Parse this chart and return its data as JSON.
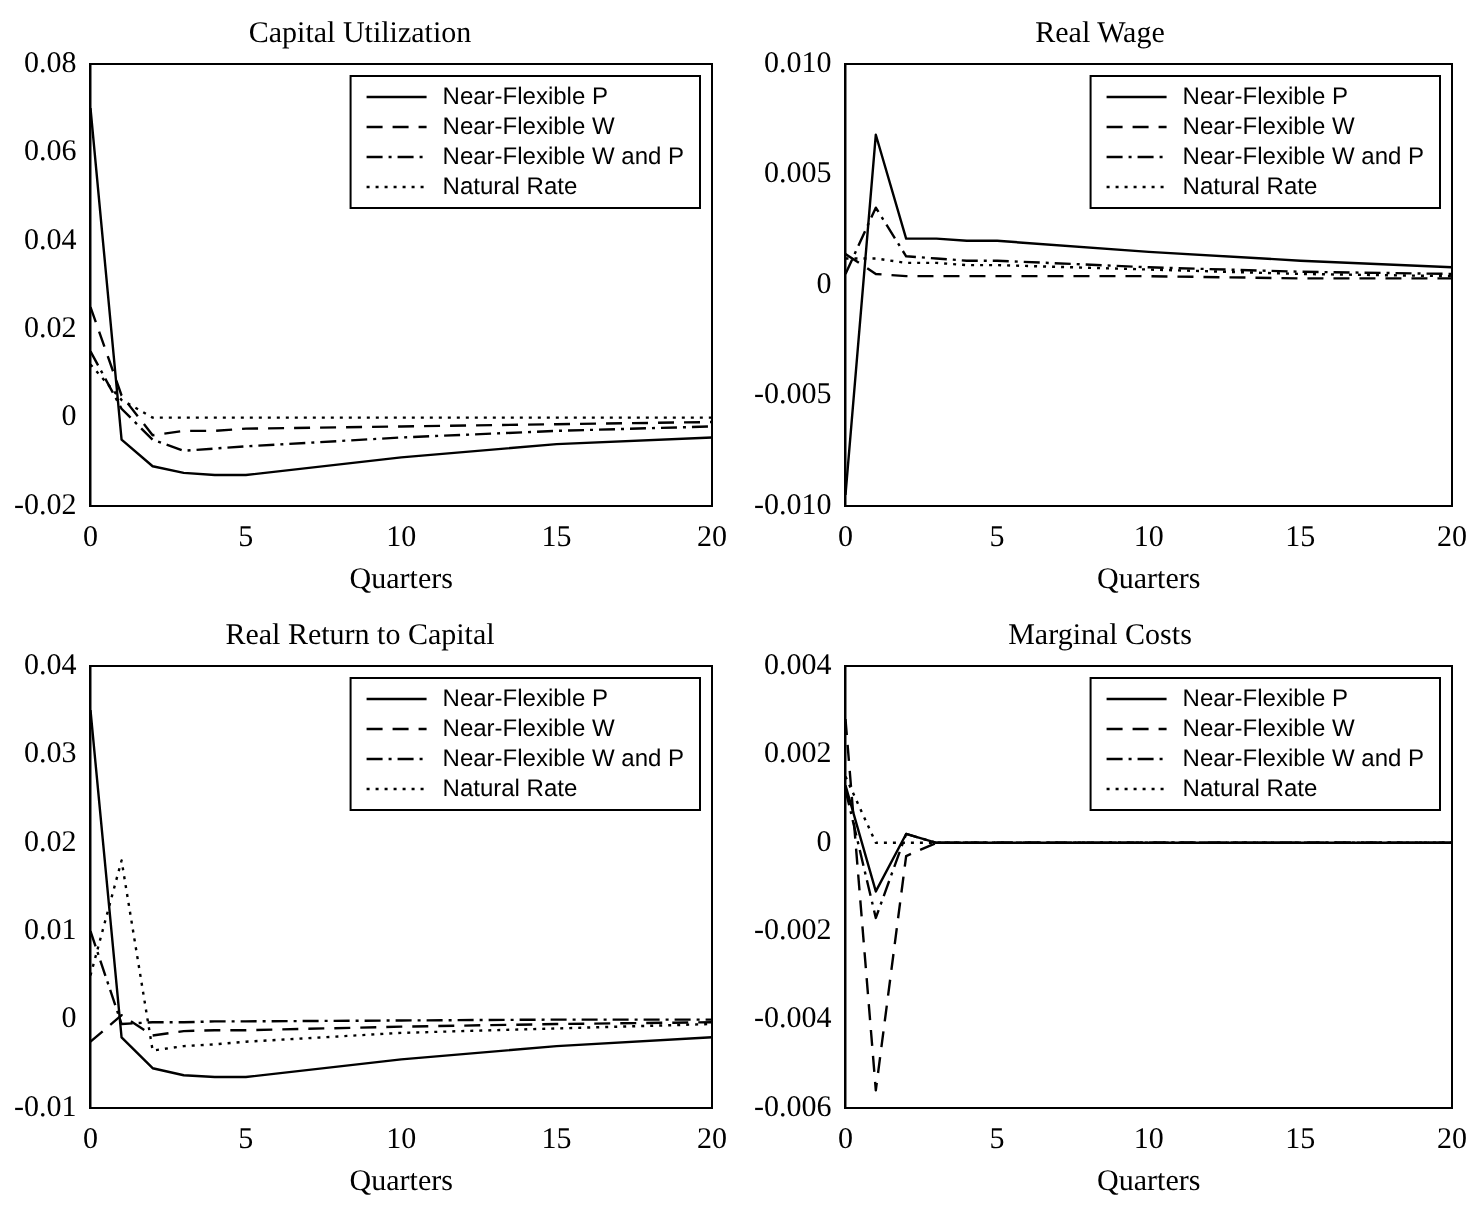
{
  "chart_data": [
    {
      "type": "line",
      "title": "Capital Utilization",
      "xlabel": "Quarters",
      "x": [
        0,
        1,
        2,
        3,
        4,
        5,
        10,
        15,
        20
      ],
      "xlim": [
        0,
        20
      ],
      "xticks": [
        0,
        5,
        10,
        15,
        20
      ],
      "ylim": [
        -0.02,
        0.08
      ],
      "yticks": [
        -0.02,
        0,
        0.02,
        0.04,
        0.06,
        0.08
      ],
      "grid": false,
      "legend": "top right",
      "marker": "none",
      "series": [
        {
          "name": "Near-Flexible P",
          "color": "#000000",
          "line_style": "solid",
          "values": [
            0.07,
            -0.005,
            -0.011,
            -0.0125,
            -0.013,
            -0.013,
            -0.009,
            -0.006,
            -0.0045
          ]
        },
        {
          "name": "Near-Flexible W",
          "color": "#000000",
          "line_style": "dashed",
          "values": [
            0.025,
            0.005,
            -0.004,
            -0.003,
            -0.003,
            -0.0025,
            -0.002,
            -0.0015,
            -0.001
          ]
        },
        {
          "name": "Near-Flexible W and P",
          "color": "#000000",
          "line_style": "dashdot",
          "values": [
            0.015,
            0.002,
            -0.005,
            -0.0075,
            -0.007,
            -0.0065,
            -0.0045,
            -0.003,
            -0.002
          ]
        },
        {
          "name": "Natural Rate",
          "color": "#000000",
          "line_style": "dotted",
          "values": [
            0.012,
            0.004,
            0,
            0,
            0,
            0,
            0,
            0,
            0
          ]
        }
      ]
    },
    {
      "type": "line",
      "title": "Real Wage",
      "xlabel": "Quarters",
      "x": [
        0,
        1,
        2,
        3,
        4,
        5,
        10,
        15,
        20
      ],
      "xlim": [
        0,
        20
      ],
      "xticks": [
        0,
        5,
        10,
        15,
        20
      ],
      "ylim": [
        -0.01,
        0.01
      ],
      "yticks": [
        {
          "value": -0.01,
          "label": "-0.010"
        },
        {
          "value": -0.005,
          "label": "-0.005"
        },
        0,
        {
          "value": 0.005,
          "label": "0.005"
        },
        {
          "value": 0.01,
          "label": "0.010"
        }
      ],
      "grid": false,
      "legend": "top right",
      "marker": "none",
      "series": [
        {
          "name": "Near-Flexible P",
          "color": "#000000",
          "line_style": "solid",
          "values": [
            -0.0095,
            0.0068,
            0.0021,
            0.0021,
            0.002,
            0.002,
            0.0015,
            0.0011,
            0.0008
          ]
        },
        {
          "name": "Near-Flexible W",
          "color": "#000000",
          "line_style": "dashed",
          "values": [
            0.0014,
            0.0005,
            0.0004,
            0.0004,
            0.0004,
            0.0004,
            0.0004,
            0.0003,
            0.0003
          ]
        },
        {
          "name": "Near-Flexible W and P",
          "color": "#000000",
          "line_style": "dashdot",
          "values": [
            0.0005,
            0.0035,
            0.0013,
            0.0012,
            0.0011,
            0.0011,
            0.0008,
            0.0006,
            0.0005
          ]
        },
        {
          "name": "Natural Rate",
          "color": "#000000",
          "line_style": "dotted",
          "values": [
            0.0012,
            0.0012,
            0.001,
            0.001,
            0.0009,
            0.0009,
            0.0007,
            0.0005,
            0.0004
          ]
        }
      ]
    },
    {
      "type": "line",
      "title": "Real Return to Capital",
      "xlabel": "Quarters",
      "x": [
        0,
        1,
        2,
        3,
        4,
        5,
        10,
        15,
        20
      ],
      "xlim": [
        0,
        20
      ],
      "xticks": [
        0,
        5,
        10,
        15,
        20
      ],
      "ylim": [
        -0.01,
        0.04
      ],
      "yticks": [
        -0.01,
        0,
        0.01,
        0.02,
        0.03,
        0.04
      ],
      "grid": false,
      "legend": "top right",
      "marker": "none",
      "series": [
        {
          "name": "Near-Flexible P",
          "color": "#000000",
          "line_style": "solid",
          "values": [
            0.035,
            -0.002,
            -0.0055,
            -0.0063,
            -0.0065,
            -0.0065,
            -0.0045,
            -0.003,
            -0.002
          ]
        },
        {
          "name": "Near-Flexible W",
          "color": "#000000",
          "line_style": "dashed",
          "values": [
            -0.0025,
            0.0005,
            -0.0018,
            -0.0013,
            -0.0012,
            -0.0012,
            -0.0008,
            -0.0005,
            -0.0003
          ]
        },
        {
          "name": "Near-Flexible W and P",
          "color": "#000000",
          "line_style": "dashdot",
          "values": [
            0.01,
            -0.0005,
            -0.0003,
            -0.0003,
            -0.0002,
            -0.0002,
            -0.0001,
            0,
            0
          ]
        },
        {
          "name": "Natural Rate",
          "color": "#000000",
          "line_style": "dotted",
          "values": [
            0.005,
            0.018,
            -0.0035,
            -0.003,
            -0.0028,
            -0.0025,
            -0.0015,
            -0.001,
            -0.0005
          ]
        }
      ]
    },
    {
      "type": "line",
      "title": "Marginal Costs",
      "xlabel": "Quarters",
      "x": [
        0,
        1,
        2,
        3,
        4,
        5,
        10,
        15,
        20
      ],
      "xlim": [
        0,
        20
      ],
      "xticks": [
        0,
        5,
        10,
        15,
        20
      ],
      "ylim": [
        -0.006,
        0.004
      ],
      "yticks": [
        -0.006,
        -0.004,
        -0.002,
        0,
        0.002,
        0.004
      ],
      "grid": false,
      "legend": "top right",
      "marker": "none",
      "series": [
        {
          "name": "Near-Flexible P",
          "color": "#000000",
          "line_style": "solid",
          "values": [
            0.0013,
            -0.0011,
            0.0002,
            0,
            0,
            0,
            0,
            0,
            0
          ]
        },
        {
          "name": "Near-Flexible W",
          "color": "#000000",
          "line_style": "dashed",
          "values": [
            0.0028,
            -0.0056,
            -0.0003,
            0,
            0,
            0,
            0,
            0,
            0
          ]
        },
        {
          "name": "Near-Flexible W and P",
          "color": "#000000",
          "line_style": "dashdot",
          "values": [
            0.0012,
            -0.0017,
            0.0002,
            0,
            0,
            0,
            0,
            0,
            0
          ]
        },
        {
          "name": "Natural Rate",
          "color": "#000000",
          "line_style": "dotted",
          "values": [
            0.0015,
            0,
            0,
            0,
            0,
            0,
            0,
            0,
            0
          ]
        }
      ]
    }
  ]
}
